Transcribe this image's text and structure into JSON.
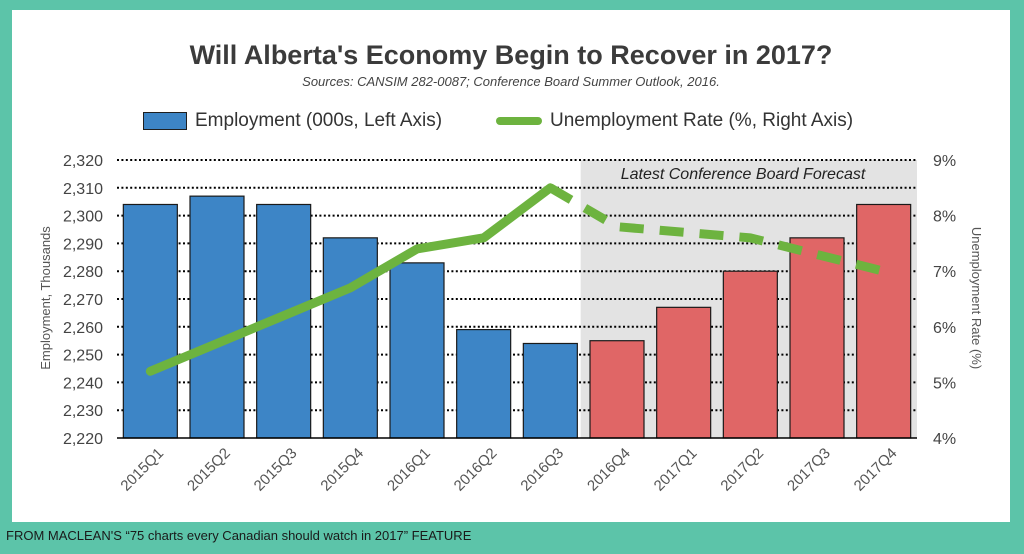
{
  "title": "Will Alberta's Economy Begin to Recover in 2017?",
  "subtitle": "Sources:  CANSIM 282-0087; Conference  Board Summer Outlook, 2016.",
  "footer": "FROM MACLEAN'S “75 charts every Canadian should watch in 2017” FEATURE",
  "legend": {
    "employment": "Employment (000s, Left Axis)",
    "unemployment": "Unemployment Rate (%, Right Axis)"
  },
  "forecast_label": "Latest Conference Board Forecast",
  "colors": {
    "actual_bar": "#3d85c6",
    "forecast_bar": "#e06666",
    "line": "#6db33f",
    "forecast_bg": "#e3e3e3",
    "frame": "#5cc4a9"
  },
  "chart_data": {
    "type": "bar",
    "categories": [
      "2015Q1",
      "2015Q2",
      "2015Q3",
      "2015Q4",
      "2016Q1",
      "2016Q2",
      "2016Q3",
      "2016Q4",
      "2017Q1",
      "2017Q2",
      "2017Q3",
      "2017Q4"
    ],
    "series": [
      {
        "name": "Employment (000s, Left Axis)",
        "type": "bar",
        "axis": "left",
        "values": [
          2304,
          2307,
          2304,
          2292,
          2283,
          2259,
          2254,
          2255,
          2267,
          2280,
          2292,
          2304
        ]
      },
      {
        "name": "Unemployment Rate (%, Right Axis)",
        "type": "line",
        "axis": "right",
        "values": [
          5.2,
          5.7,
          6.2,
          6.7,
          7.4,
          7.6,
          8.5,
          7.8,
          7.7,
          7.6,
          7.3,
          7.0
        ]
      }
    ],
    "forecast_start_index": 7,
    "ylabel": "Employment, Thousands",
    "y2label": "Unemployment Rate (%)",
    "ylim": [
      2220,
      2320
    ],
    "y_ticks": [
      "2,220",
      "2,230",
      "2,240",
      "2,250",
      "2,260",
      "2,270",
      "2,280",
      "2,290",
      "2,300",
      "2,310",
      "2,320"
    ],
    "y2lim": [
      4,
      9
    ],
    "y2_ticks": [
      "4%",
      "5%",
      "6%",
      "7%",
      "8%",
      "9%"
    ],
    "grid": true
  }
}
